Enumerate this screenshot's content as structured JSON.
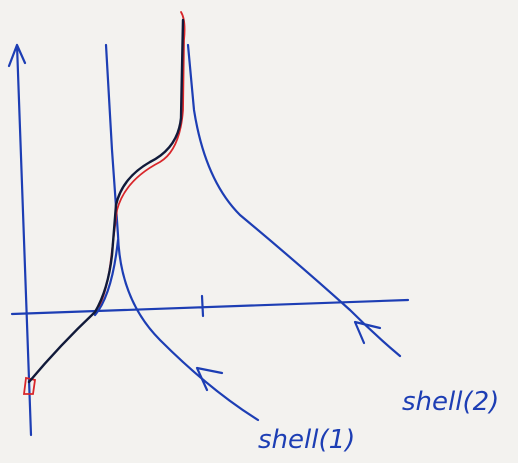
{
  "labels": {
    "shell_1": "shell(1)",
    "shell_2": "shell(2)"
  }
}
